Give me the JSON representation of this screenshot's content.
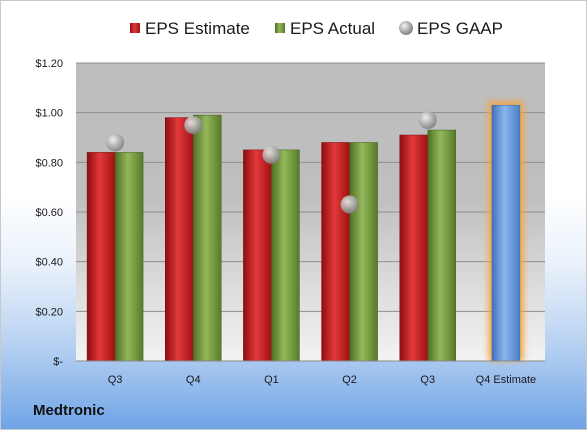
{
  "company": "Medtronic",
  "colors": {
    "estimate": "#c8181b",
    "actual": "#6e9437",
    "gaap": "#a8a8a8",
    "forecast": "#5d93d6",
    "forecast_glow": "#f5a642"
  },
  "chart_data": {
    "type": "bar",
    "categories": [
      "Q3",
      "Q4",
      "Q1",
      "Q2",
      "Q3",
      "Q4 Estimate"
    ],
    "series": [
      {
        "name": "EPS Estimate",
        "values": [
          0.84,
          0.98,
          0.85,
          0.88,
          0.91,
          1.03
        ]
      },
      {
        "name": "EPS Actual",
        "values": [
          0.84,
          0.99,
          0.85,
          0.88,
          0.93,
          null
        ]
      },
      {
        "name": "EPS GAAP",
        "type": "scatter",
        "values": [
          0.88,
          0.95,
          0.83,
          0.63,
          0.97,
          null
        ]
      }
    ],
    "ylim": [
      0,
      1.2
    ],
    "yticks": [
      0,
      0.2,
      0.4,
      0.6,
      0.8,
      1.0,
      1.2
    ],
    "ytick_labels": [
      "$-",
      "$0.20",
      "$0.40",
      "$0.60",
      "$0.80",
      "$1.00",
      "$1.20"
    ],
    "legend_position": "top",
    "grid": true
  }
}
